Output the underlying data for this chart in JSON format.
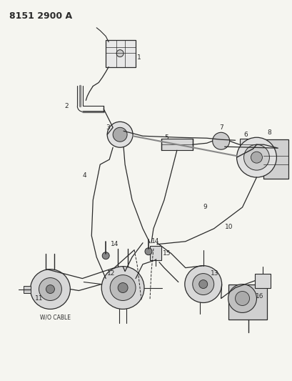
{
  "title": "8151 2900 A",
  "bg": "#f5f5f0",
  "lc": "#2a2a2a",
  "fig_width": 4.1,
  "fig_height": 5.33,
  "dpi": 100,
  "wo_cable": "W/O CABLE"
}
